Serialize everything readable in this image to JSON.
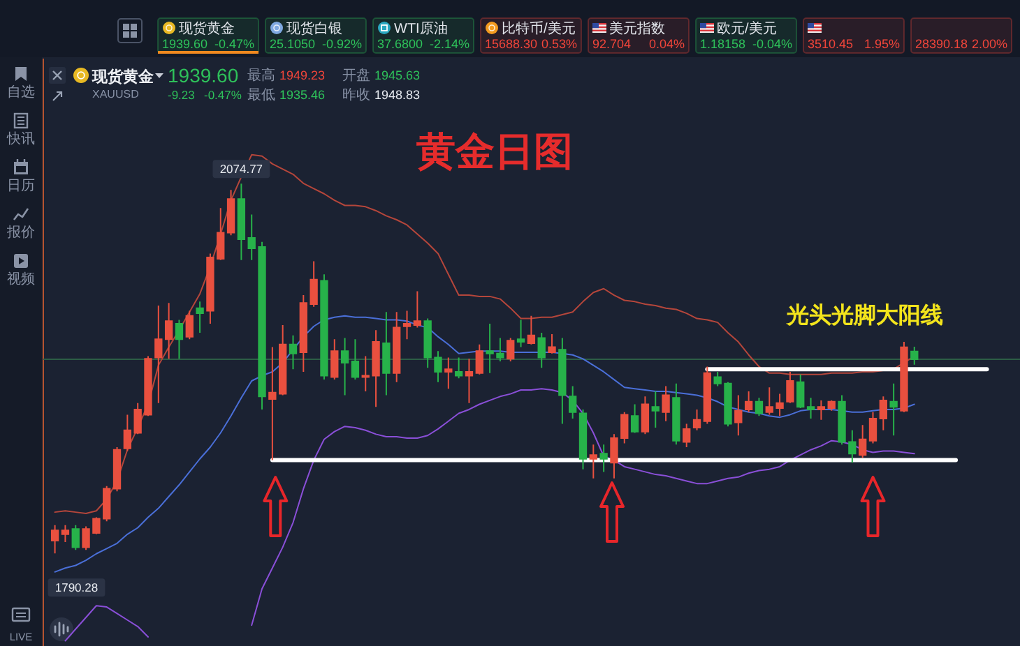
{
  "chart_data": [
    {
      "type": "other",
      "categories": [
        "现货黄金",
        "现货白银",
        "WTI原油",
        "比特币/美元",
        "美元指数",
        "欧元/美元",
        null,
        null
      ],
      "annotations": [
        "1939.60",
        "-0.47%",
        "25.1050",
        "-0.92%",
        "37.6800",
        "-2.14%",
        "15688.30",
        "0.53%",
        "92.704",
        "0.04%",
        "1.18158",
        "-0.04%",
        "3510.45",
        "1.95%",
        "28390.18",
        "2.00%"
      ],
      "colors": [
        "#2ec15a",
        "#2ec15a",
        "#2ec15a",
        "#f0453a",
        "#f0453a",
        "#2ec15a",
        "#f0453a",
        "#f0453a"
      ]
    },
    {
      "type": "other",
      "annotations": [
        "自选",
        "快讯",
        "日历",
        "报价",
        "视频",
        "LIVE"
      ]
    },
    {
      "type": "other",
      "title": "现货黄金",
      "subtitle": "XAUUSD",
      "annotations": [
        "1939.60",
        "-9.23",
        "-0.47%",
        "最高",
        "1949.23",
        "开盘",
        "1945.63",
        "最低",
        "1935.46",
        "昨收",
        "1948.83"
      ],
      "colors": [
        "#2ec15a",
        "#2ec15a",
        "#2ec15a",
        "#8791a5",
        "#f0453a",
        "#8791a5",
        "#2ec15a",
        "#8791a5",
        "#2ec15a",
        "#8791a5",
        "#e6e9ef"
      ]
    },
    {
      "type": "candlestick",
      "title": "黄金日图",
      "ylim": [
        1719,
        2171
      ],
      "categories": [
        null,
        null,
        null,
        null,
        null,
        null,
        null,
        null,
        null,
        null,
        null,
        null,
        null,
        null,
        null,
        null,
        null,
        null,
        null,
        null,
        null,
        null,
        null,
        null,
        null,
        null,
        null,
        null,
        null,
        null,
        null,
        null,
        null,
        null,
        null,
        null,
        null,
        null,
        null,
        null,
        null,
        null,
        null,
        null,
        null,
        null,
        null,
        null,
        null,
        null,
        null,
        null,
        null,
        null,
        null,
        null,
        null,
        null,
        null,
        null,
        null,
        null,
        null,
        null,
        null,
        null,
        null,
        null,
        null,
        null,
        null,
        null,
        null,
        null,
        null,
        null,
        null,
        null,
        null,
        null,
        null,
        null,
        null,
        null,
        null,
        null,
        null,
        null,
        null,
        null,
        null,
        null,
        null,
        null
      ],
      "ohlc": [
        [
          1800,
          1812,
          1790.28,
          1808
        ],
        [
          1805,
          1812,
          1799,
          1808
        ],
        [
          1809,
          1812,
          1793,
          1795
        ],
        [
          1795,
          1811,
          1793,
          1809
        ],
        [
          1806,
          1818,
          1805,
          1817
        ],
        [
          1817,
          1842,
          1815,
          1840
        ],
        [
          1840,
          1872,
          1838,
          1870
        ],
        [
          1871,
          1897,
          1869,
          1885
        ],
        [
          1883,
          1906,
          1882,
          1901
        ],
        [
          1897,
          1942,
          1896,
          1940
        ],
        [
          1941,
          1981,
          1906,
          1955
        ],
        [
          1955,
          1983,
          1940,
          1969
        ],
        [
          1967,
          1970,
          1940,
          1955
        ],
        [
          1957,
          1977,
          1955,
          1973
        ],
        [
          1979,
          1984,
          1960,
          1975
        ],
        [
          1977,
          2021,
          1967,
          2018
        ],
        [
          2017,
          2056,
          2016,
          2037
        ],
        [
          2037,
          2070,
          2035,
          2063
        ],
        [
          2063,
          2074.77,
          2016,
          2032
        ],
        [
          2033,
          2051,
          2016,
          2025
        ],
        [
          2026,
          2030,
          1901,
          1911
        ],
        [
          1909,
          1949,
          1862,
          1914
        ],
        [
          1913,
          1966,
          1912,
          1951
        ],
        [
          1951,
          1958,
          1932,
          1944
        ],
        [
          1945,
          1989,
          1930,
          1983
        ],
        [
          1982,
          2015,
          1980,
          2001
        ],
        [
          2000,
          2005,
          1924,
          1927
        ],
        [
          1926,
          1955,
          1924,
          1946
        ],
        [
          1946,
          1956,
          1912,
          1937
        ],
        [
          1938,
          1955,
          1924,
          1926
        ],
        [
          1926,
          1942,
          1915,
          1927
        ],
        [
          1927,
          1962,
          1903,
          1953
        ],
        [
          1952,
          1976,
          1912,
          1929
        ],
        [
          1929,
          1976,
          1922,
          1964
        ],
        [
          1965,
          1977,
          1955,
          1967
        ],
        [
          1966,
          1992,
          1964,
          1969
        ],
        [
          1969,
          1971,
          1933,
          1941
        ],
        [
          1941,
          1946,
          1922,
          1930
        ],
        [
          1930,
          1941,
          1917,
          1932
        ],
        [
          1930,
          1941,
          1925,
          1927
        ],
        [
          1927,
          1940,
          1906,
          1930
        ],
        [
          1929,
          1951,
          1928,
          1946
        ],
        [
          1946,
          1967,
          1929,
          1944
        ],
        [
          1944,
          1956,
          1938,
          1941
        ],
        [
          1940,
          1956,
          1938,
          1954
        ],
        [
          1955,
          1970,
          1949,
          1953
        ],
        [
          1952,
          1973,
          1951,
          1958
        ],
        [
          1956,
          1960,
          1933,
          1941
        ],
        [
          1945,
          1959,
          1944,
          1949
        ],
        [
          1947,
          1956,
          1890,
          1912
        ],
        [
          1911,
          1919,
          1894,
          1899
        ],
        [
          1898,
          1901,
          1855,
          1863
        ],
        [
          1863,
          1874,
          1848,
          1866
        ],
        [
          1867,
          1874,
          1853,
          1863
        ],
        [
          1860,
          1882,
          1848,
          1879
        ],
        [
          1879,
          1899,
          1875,
          1897
        ],
        [
          1896,
          1905,
          1883,
          1884
        ],
        [
          1884,
          1911,
          1882,
          1905
        ],
        [
          1903,
          1915,
          1887,
          1900
        ],
        [
          1899,
          1919,
          1892,
          1912
        ],
        [
          1910,
          1921,
          1874,
          1877
        ],
        [
          1876,
          1890,
          1872,
          1886
        ],
        [
          1887,
          1901,
          1885,
          1893
        ],
        [
          1892,
          1934,
          1890,
          1929
        ],
        [
          1926,
          1930,
          1919,
          1921
        ],
        [
          1921,
          1922,
          1888,
          1890
        ],
        [
          1891,
          1912,
          1881,
          1900
        ],
        [
          1901,
          1915,
          1899,
          1907
        ],
        [
          1907,
          1910,
          1896,
          1898
        ],
        [
          1899,
          1918,
          1897,
          1903
        ],
        [
          1902,
          1913,
          1896,
          1906
        ],
        [
          1907,
          1930,
          1906,
          1923
        ],
        [
          1922,
          1928,
          1902,
          1903
        ],
        [
          1903,
          1910,
          1894,
          1901
        ],
        [
          1901,
          1908,
          1893,
          1903
        ],
        [
          1902,
          1908,
          1900,
          1907
        ],
        [
          1907,
          1912,
          1874,
          1876
        ],
        [
          1876,
          1885,
          1860,
          1867
        ],
        [
          1866,
          1889,
          1864,
          1878
        ],
        [
          1877,
          1899,
          1875,
          1894
        ],
        [
          1894,
          1911,
          1885,
          1908
        ],
        [
          1907,
          1921,
          1881,
          1903
        ],
        [
          1900,
          1953,
          1899,
          1948.83
        ],
        [
          1945.63,
          1949.23,
          1935.46,
          1939.6
        ],
        null,
        null,
        null,
        null,
        null,
        null,
        null,
        null,
        null,
        null
      ],
      "colors": [
        "#e9503f",
        "#e9503f",
        "#27b24a",
        "#e9503f",
        "#e9503f",
        "#e9503f",
        "#e9503f",
        "#e9503f",
        "#e9503f",
        "#e9503f",
        "#e9503f",
        "#e9503f",
        "#27b24a",
        "#e9503f",
        "#27b24a",
        "#e9503f",
        "#e9503f",
        "#e9503f",
        "#27b24a",
        "#27b24a",
        "#27b24a",
        "#e9503f",
        "#e9503f",
        "#27b24a",
        "#e9503f",
        "#e9503f",
        "#27b24a",
        "#e9503f",
        "#27b24a",
        "#27b24a",
        "#e9503f",
        "#e9503f",
        "#27b24a",
        "#e9503f",
        "#e9503f",
        "#e9503f",
        "#27b24a",
        "#27b24a",
        "#e9503f",
        "#27b24a",
        "#e9503f",
        "#e9503f",
        "#27b24a",
        "#27b24a",
        "#e9503f",
        "#27b24a",
        "#e9503f",
        "#27b24a",
        "#e9503f",
        "#27b24a",
        "#27b24a",
        "#27b24a",
        "#e9503f",
        "#27b24a",
        "#e9503f",
        "#e9503f",
        "#27b24a",
        "#e9503f",
        "#27b24a",
        "#e9503f",
        "#27b24a",
        "#e9503f",
        "#e9503f",
        "#e9503f",
        "#27b24a",
        "#27b24a",
        "#e9503f",
        "#e9503f",
        "#27b24a",
        "#e9503f",
        "#e9503f",
        "#e9503f",
        "#27b24a",
        "#27b24a",
        "#e9503f",
        "#e9503f",
        "#27b24a",
        "#27b24a",
        "#e9503f",
        "#e9503f",
        "#e9503f",
        "#27b24a",
        "#e9503f",
        "#27b24a",
        null,
        null,
        null,
        null,
        null,
        null,
        null,
        null,
        null,
        null
      ],
      "series": [
        {
          "type": "line",
          "color": "#b5463b",
          "values": [
            1822,
            1823,
            1822,
            1821,
            1823,
            1832,
            1846,
            1870,
            1887,
            1905,
            1935,
            1949,
            1962,
            1976,
            1990,
            2011,
            2036,
            2062,
            2080,
            2097,
            2096,
            2090,
            2086,
            2082,
            2075,
            2071,
            2067,
            2062,
            2058,
            2058,
            2057,
            2054,
            2050,
            2047,
            2043,
            2036,
            2029,
            2021,
            2005,
            1989,
            1989,
            1988,
            1988,
            1986,
            1979,
            1971,
            1971,
            1972,
            1972,
            1974,
            1976,
            1984,
            1991,
            1994,
            1989,
            1985,
            1984,
            1982,
            1981,
            1979,
            1978,
            1975,
            1971,
            1970,
            1968,
            1960,
            1953,
            1943,
            1934,
            1929,
            1929,
            1928,
            1928,
            1928,
            1928,
            1929,
            1929,
            1929,
            1930,
            1930,
            1931,
            1932,
            1937,
            1942,
            null,
            null,
            null,
            null,
            null,
            null,
            null,
            null,
            null,
            null
          ]
        },
        {
          "type": "line",
          "color": "#4a6fd8",
          "values": [
            1776,
            1779,
            1781,
            1785,
            1790,
            1794,
            1798,
            1805,
            1810,
            1818,
            1825,
            1834,
            1843,
            1853,
            1863,
            1872,
            1883,
            1896,
            1910,
            1923,
            1927,
            1930,
            1937,
            1947,
            1957,
            1965,
            1970,
            1972,
            1973,
            1972,
            1972,
            1971,
            1970,
            1970,
            1969,
            1966,
            1964,
            1957,
            1951,
            1944,
            1945,
            1946,
            1946,
            1946,
            1945,
            1945,
            1945,
            1945,
            1945,
            1944,
            1943,
            1940,
            1935,
            1930,
            1924,
            1918,
            1917,
            1916,
            1915,
            1915,
            1914,
            1913,
            1912,
            1910,
            1907,
            1903,
            1901,
            1899,
            1898,
            1896,
            1895,
            1897,
            1900,
            1901,
            1901,
            1901,
            1900,
            1899,
            1899,
            1900,
            1901,
            1901,
            1902,
            1905,
            null,
            null,
            null,
            null,
            null,
            null,
            null,
            null,
            null,
            null
          ]
        },
        {
          "type": "line",
          "color": "#8a4fd8",
          "values": [
            null,
            1723,
            1732,
            1741,
            1750,
            1749,
            1744,
            1739,
            1734,
            1726,
            null,
            null,
            null,
            null,
            null,
            null,
            null,
            null,
            null,
            1735,
            1763,
            1779,
            1795,
            1814,
            1840,
            1862,
            1878,
            1884,
            1888,
            1887,
            1885,
            1882,
            1880,
            1880,
            1879,
            1879,
            1881,
            1886,
            1892,
            1898,
            1901,
            1905,
            1908,
            1911,
            1913,
            1916,
            1916,
            1917,
            1916,
            1914,
            1908,
            1898,
            1883,
            1865,
            1862,
            1857,
            1855,
            1853,
            1851,
            1850,
            1848,
            1846,
            1844,
            1844,
            1846,
            1848,
            1849,
            1852,
            1854,
            1855,
            1857,
            1862,
            1866,
            1870,
            1873,
            1877,
            1876,
            1874,
            1870,
            1868,
            1869,
            1869,
            1868,
            1867,
            null,
            null,
            null,
            null,
            null,
            null,
            null,
            null,
            null,
            null
          ]
        },
        {
          "type": "line",
          "color": "#ffffff",
          "values": [
            null,
            null,
            null,
            null,
            null,
            null,
            null,
            null,
            null,
            null,
            null,
            null,
            null,
            null,
            null,
            null,
            null,
            null,
            null,
            null,
            null,
            1862,
            1862,
            1862,
            1862,
            1862,
            1862,
            1862,
            1862,
            1862,
            1862,
            1862,
            1862,
            1862,
            1862,
            1862,
            1862,
            1862,
            1862,
            1862,
            1862,
            1862,
            1862,
            1862,
            1862,
            1862,
            1862,
            1862,
            1862,
            1862,
            1862,
            1862,
            1862,
            1862,
            1862,
            1862,
            1862,
            1862,
            1862,
            1862,
            1862,
            1862,
            1862,
            1862,
            1862,
            1862,
            1862,
            1862,
            1862,
            1862,
            1862,
            1862,
            1862,
            1862,
            1862,
            1862,
            1862,
            1862,
            1862,
            1862,
            1862,
            1862,
            1862,
            1862,
            1862,
            1862,
            1862,
            1862,
            null,
            null,
            null,
            null,
            null,
            null
          ]
        },
        {
          "type": "line",
          "color": "#ffffff",
          "values": [
            null,
            null,
            null,
            null,
            null,
            null,
            null,
            null,
            null,
            null,
            null,
            null,
            null,
            null,
            null,
            null,
            null,
            null,
            null,
            null,
            null,
            null,
            null,
            null,
            null,
            null,
            null,
            null,
            null,
            null,
            null,
            null,
            null,
            null,
            null,
            null,
            null,
            null,
            null,
            null,
            null,
            null,
            null,
            null,
            null,
            null,
            null,
            null,
            null,
            null,
            null,
            null,
            null,
            null,
            null,
            null,
            null,
            null,
            null,
            null,
            null,
            null,
            null,
            1932,
            1932,
            1932,
            1932,
            1932,
            1932,
            1932,
            1932,
            1932,
            1932,
            1932,
            1932,
            1932,
            1932,
            1932,
            1932,
            1932,
            1932,
            1932,
            1932,
            1932,
            1932,
            1932,
            1932,
            1932,
            1932,
            1932,
            1932,
            null,
            null,
            null
          ]
        }
      ],
      "ref_lines": [
        {
          "axis": "y",
          "value": 1939.6,
          "color": "#2d5e46"
        }
      ],
      "annotations": [
        "光头光脚大阳线",
        {
          "text": "2074.77",
          "y": 2074.77
        },
        {
          "text": "1790.28",
          "y": 1790.28
        }
      ]
    }
  ]
}
